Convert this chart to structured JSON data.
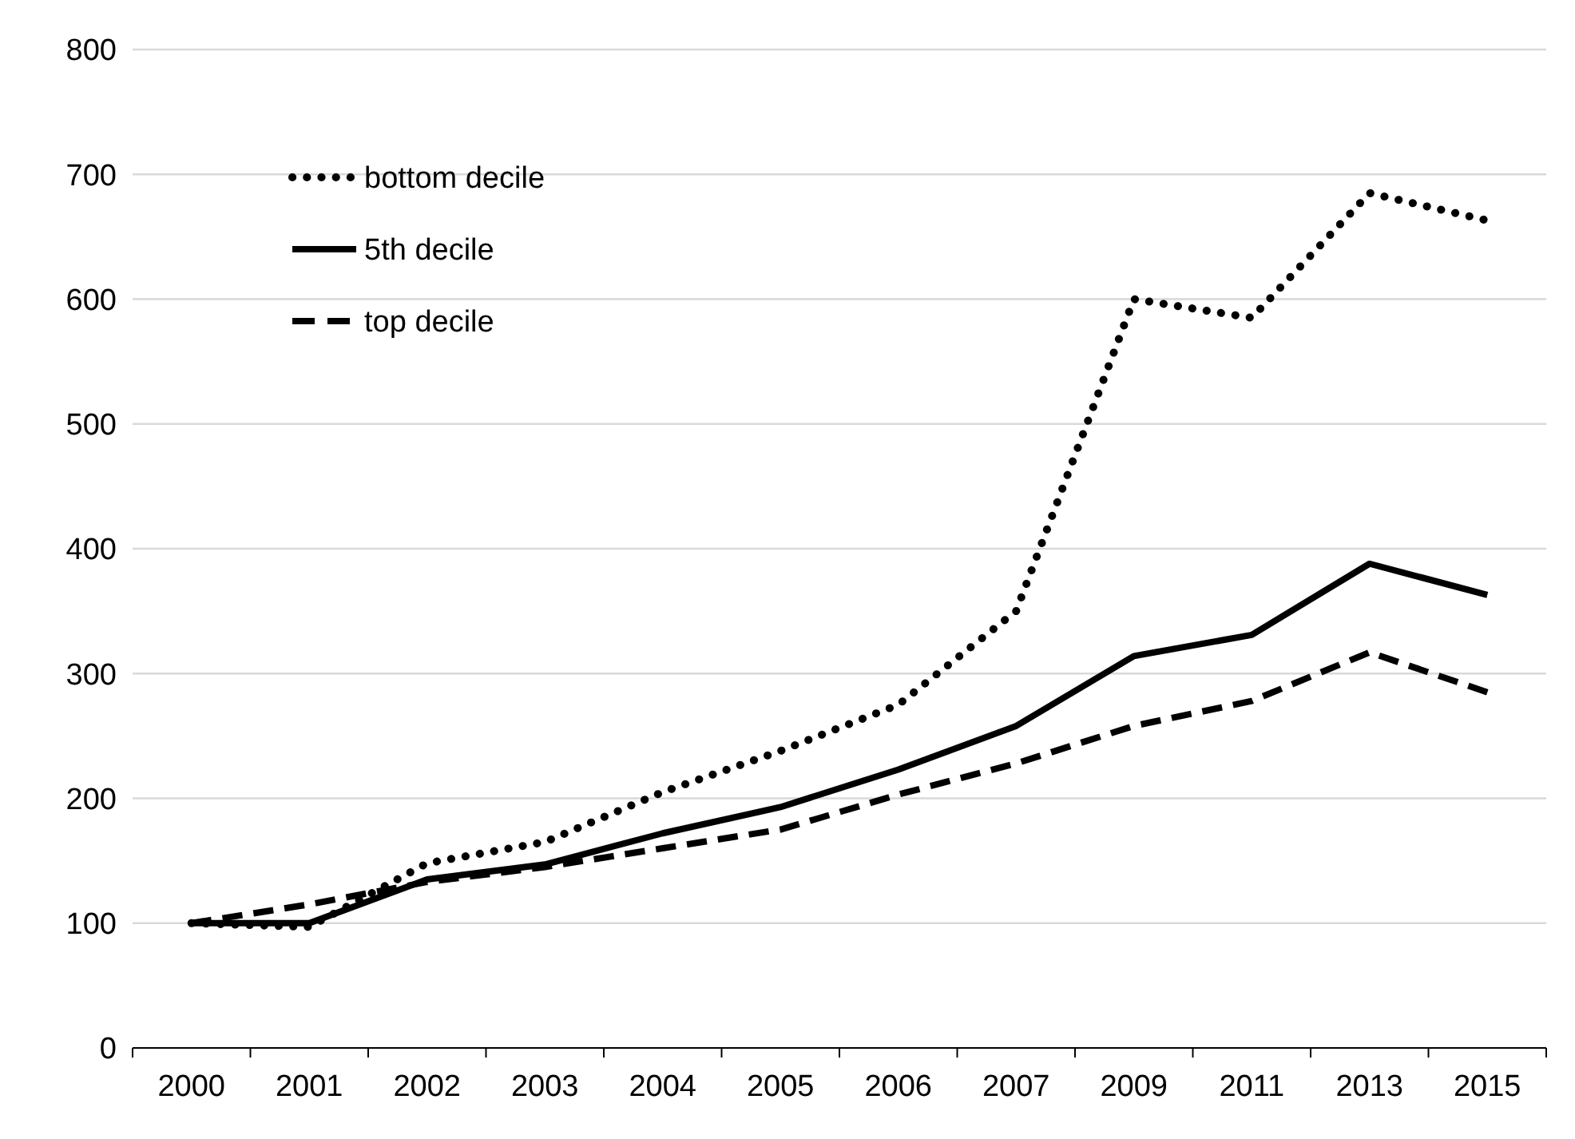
{
  "chart_data": {
    "type": "line",
    "categories": [
      "2000",
      "2001",
      "2002",
      "2003",
      "2004",
      "2005",
      "2006",
      "2007",
      "2009",
      "2011",
      "2013",
      "2015"
    ],
    "series": [
      {
        "name": "bottom decile",
        "color": "#000000",
        "line_style": "dotted",
        "values": [
          100,
          97,
          148,
          165,
          205,
          238,
          275,
          350,
          600,
          585,
          685,
          663
        ]
      },
      {
        "name": "5th decile",
        "color": "#000000",
        "line_style": "solid",
        "values": [
          100,
          100,
          135,
          147,
          172,
          193,
          223,
          258,
          314,
          331,
          388,
          363
        ]
      },
      {
        "name": "top decile",
        "color": "#000000",
        "line_style": "dashed",
        "values": [
          100,
          115,
          133,
          145,
          160,
          175,
          203,
          228,
          258,
          278,
          317,
          285
        ]
      }
    ],
    "ylim": [
      0,
      800
    ],
    "yticks": [
      0,
      100,
      200,
      300,
      400,
      500,
      600,
      700,
      800
    ],
    "grid": "y",
    "legend": "top left"
  }
}
